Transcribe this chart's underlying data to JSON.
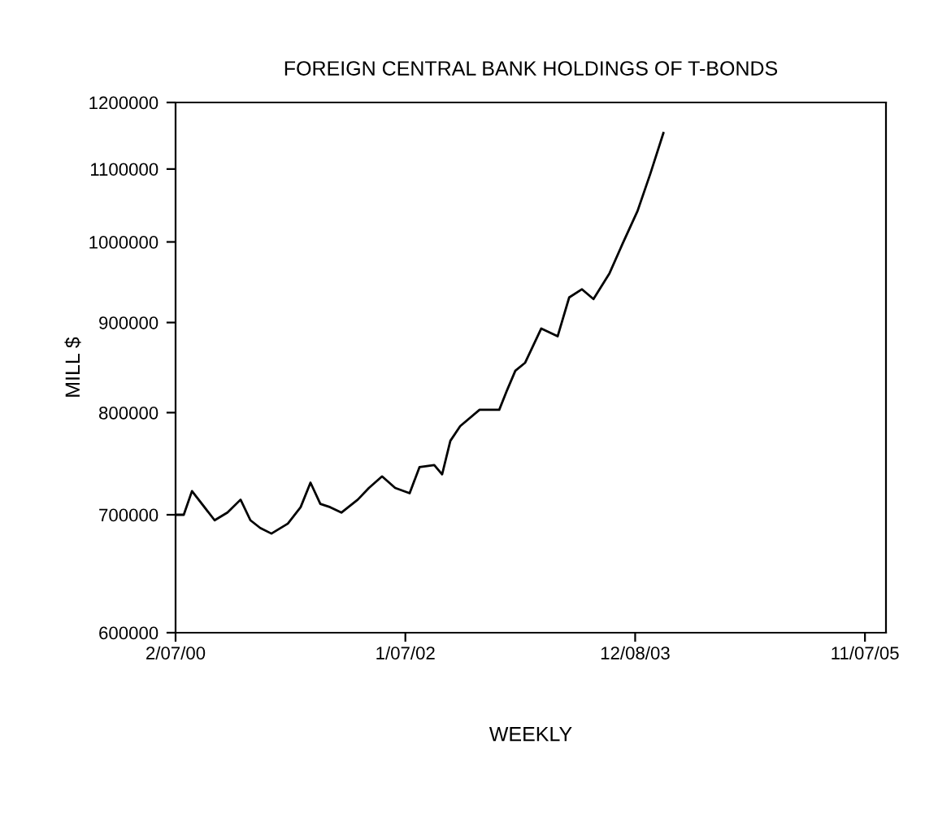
{
  "chart_data": {
    "type": "line",
    "title": "FOREIGN CENTRAL BANK HOLDINGS OF T-BONDS",
    "xlabel": "WEEKLY",
    "ylabel": "MILL $",
    "x": [
      "2000-02-07",
      "2000-03-03",
      "2000-03-28",
      "2000-06-05",
      "2000-07-14",
      "2000-08-23",
      "2000-09-22",
      "2000-10-22",
      "2000-11-25",
      "2001-01-14",
      "2001-02-22",
      "2001-03-24",
      "2001-04-23",
      "2001-05-23",
      "2001-06-26",
      "2001-08-15",
      "2001-09-18",
      "2001-10-28",
      "2001-12-07",
      "2002-01-20",
      "2002-02-19",
      "2002-04-05",
      "2002-04-29",
      "2002-05-24",
      "2002-06-23",
      "2002-08-21",
      "2002-10-20",
      "2002-11-13",
      "2002-12-08",
      "2003-01-07",
      "2003-02-25",
      "2003-04-16",
      "2003-05-21",
      "2003-06-29",
      "2003-08-03",
      "2003-09-21",
      "2003-10-31",
      "2003-12-15",
      "2004-01-23",
      "2004-03-03"
    ],
    "series": [
      {
        "color": "#000000",
        "values": [
          700000,
          700000,
          722000,
          695000,
          702000,
          714000,
          695000,
          688000,
          683000,
          692000,
          707000,
          730000,
          710000,
          707000,
          702000,
          714000,
          725000,
          736000,
          725000,
          720000,
          745000,
          747000,
          738000,
          771000,
          786000,
          803000,
          803000,
          824000,
          845000,
          854000,
          893000,
          884000,
          930000,
          940000,
          928000,
          960000,
          998000,
          1041000,
          1093000,
          1153000
        ]
      }
    ],
    "log": "y",
    "xlim": [
      "2000-02-07",
      "2006-01-10"
    ],
    "ylim": [
      600000,
      1200000
    ],
    "xticks": [
      {
        "value": "2000-02-07",
        "label": "2/07/00"
      },
      {
        "value": "2002-01-07",
        "label": "1/07/02"
      },
      {
        "value": "2003-12-08",
        "label": "12/08/03"
      },
      {
        "value": "2005-11-07",
        "label": "11/07/05"
      }
    ],
    "yticks": [
      600000,
      700000,
      800000,
      900000,
      1000000,
      1100000,
      1200000
    ],
    "grid": false,
    "marker": "none",
    "line_style": "solid"
  }
}
